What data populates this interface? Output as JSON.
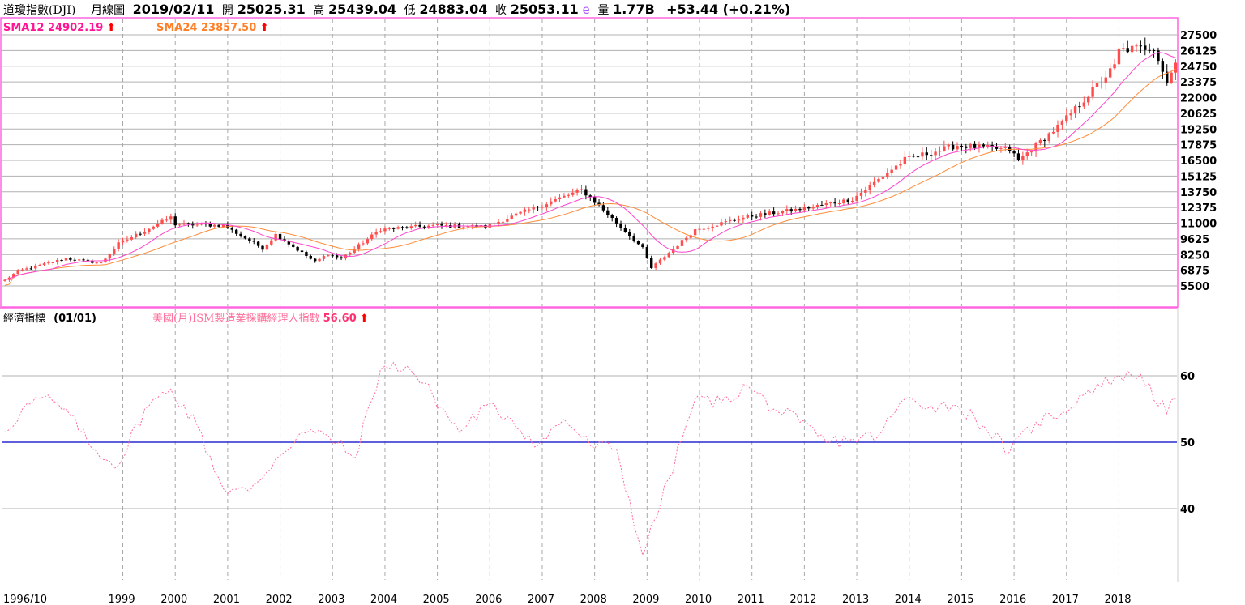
{
  "header": {
    "symbol": "道瓊指數(DJI)",
    "period": "月線圖",
    "date": "2019/02/11",
    "open_label": "開",
    "open": "25025.31",
    "high_label": "高",
    "high": "25439.04",
    "low_label": "低",
    "low": "24883.04",
    "close_label": "收",
    "close": "25053.11",
    "close_flag": "e",
    "volume_label": "量",
    "volume": "1.77B",
    "change": "+53.44 (+0.21%)"
  },
  "indicators": {
    "sma12_label": "SMA12",
    "sma12_value": "24902.19",
    "sma24_label": "SMA24",
    "sma24_value": "23857.50",
    "arrow": "⬆"
  },
  "lower_panel": {
    "title": "經濟指標",
    "range": "(01/01)",
    "series_label": "美國(月)ISM製造業採購經理人指數",
    "series_value": "56.60"
  },
  "colors": {
    "up_candle": "#ff4d4d",
    "down_candle": "#000000",
    "sma12": "#ff44cc",
    "sma24": "#ff8c3a",
    "ism_line": "#ff6f9a",
    "fifty_line": "#2a2ad0",
    "panel_border": "#ff66e0",
    "grid": "#b0b0b0",
    "sma12_text": "#ff1493",
    "sma24_text": "#ff7f27"
  },
  "chart_data": [
    {
      "type": "candlestick",
      "title": "道瓊指數(DJI) 月線圖",
      "x_start": "1996/10",
      "x_end": "2019/02",
      "x_tick_labels": [
        "1996/10",
        "1999",
        "2000",
        "2001",
        "2002",
        "2003",
        "2004",
        "2005",
        "2006",
        "2007",
        "2008",
        "2009",
        "2010",
        "2011",
        "2012",
        "2013",
        "2014",
        "2015",
        "2016",
        "2017",
        "2018"
      ],
      "y_ticks": [
        5500,
        6875,
        8250,
        9625,
        11000,
        12375,
        13750,
        15125,
        16500,
        17875,
        19250,
        20625,
        22000,
        23375,
        24750,
        26125,
        27500
      ],
      "ylim": [
        4300,
        28200
      ],
      "grid": true,
      "legend": "top-left",
      "annual_closes": {
        "x": [
          "1996/10",
          "1997/01",
          "1997/12",
          "1998/08",
          "1998/12",
          "1999/12",
          "2000/01",
          "2000/12",
          "2001/09",
          "2001/12",
          "2002/09",
          "2002/12",
          "2003/03",
          "2003/12",
          "2004/12",
          "2005/12",
          "2006/12",
          "2007/10",
          "2007/12",
          "2008/12",
          "2009/02",
          "2009/12",
          "2010/12",
          "2011/12",
          "2012/12",
          "2013/12",
          "2014/12",
          "2015/12",
          "2016/02",
          "2016/12",
          "2017/12",
          "2018/01",
          "2018/09",
          "2018/12",
          "2019/02"
        ],
        "close": [
          6000,
          6800,
          7900,
          7500,
          9200,
          11500,
          10900,
          10800,
          8800,
          10000,
          7600,
          8300,
          7900,
          10450,
          10780,
          10700,
          12460,
          13900,
          13260,
          8780,
          7060,
          10430,
          11580,
          12220,
          13100,
          16580,
          17820,
          17420,
          16520,
          19760,
          24720,
          26150,
          26460,
          23330,
          25053
        ]
      },
      "series": [
        {
          "name": "SMA12",
          "value": 24902.19
        },
        {
          "name": "SMA24",
          "value": 23857.5
        }
      ]
    },
    {
      "type": "line",
      "title": "美國(月)ISM製造業採購經理人指數",
      "x_start": "1996/10",
      "x_end": "2019/02",
      "y_ticks": [
        40,
        50,
        60
      ],
      "ylim": [
        31,
        71
      ],
      "reference_line": 50,
      "x": [
        "1996/10",
        "1997/02",
        "1997/07",
        "1998/01",
        "1998/06",
        "1998/12",
        "1999/06",
        "1999/12",
        "2000/06",
        "2000/12",
        "2001/06",
        "2001/12",
        "2002/06",
        "2002/12",
        "2003/06",
        "2003/12",
        "2004/06",
        "2004/12",
        "2005/06",
        "2005/12",
        "2006/06",
        "2006/12",
        "2007/06",
        "2007/12",
        "2008/06",
        "2008/12",
        "2009/06",
        "2009/12",
        "2010/06",
        "2010/12",
        "2011/06",
        "2011/12",
        "2012/06",
        "2012/12",
        "2013/06",
        "2013/12",
        "2014/06",
        "2014/12",
        "2015/06",
        "2015/12",
        "2016/06",
        "2016/12",
        "2017/06",
        "2017/12",
        "2018/06",
        "2018/12",
        "2019/02"
      ],
      "values": [
        51.5,
        55.0,
        56.8,
        54.0,
        49.0,
        46.5,
        55.0,
        58.0,
        52.5,
        43.0,
        42.5,
        47.5,
        51.5,
        51.0,
        47.5,
        61.0,
        61.5,
        57.0,
        51.5,
        55.5,
        53.5,
        49.5,
        53.5,
        49.5,
        49.0,
        33.0,
        44.5,
        56.5,
        56.0,
        58.5,
        55.0,
        53.0,
        50.0,
        50.5,
        51.0,
        56.5,
        55.5,
        55.5,
        52.5,
        48.5,
        53.0,
        54.5,
        57.8,
        59.7,
        60.2,
        54.3,
        56.6
      ],
      "series": [
        {
          "name": "美國(月)ISM製造業採購經理人指數",
          "value": 56.6
        }
      ]
    }
  ]
}
